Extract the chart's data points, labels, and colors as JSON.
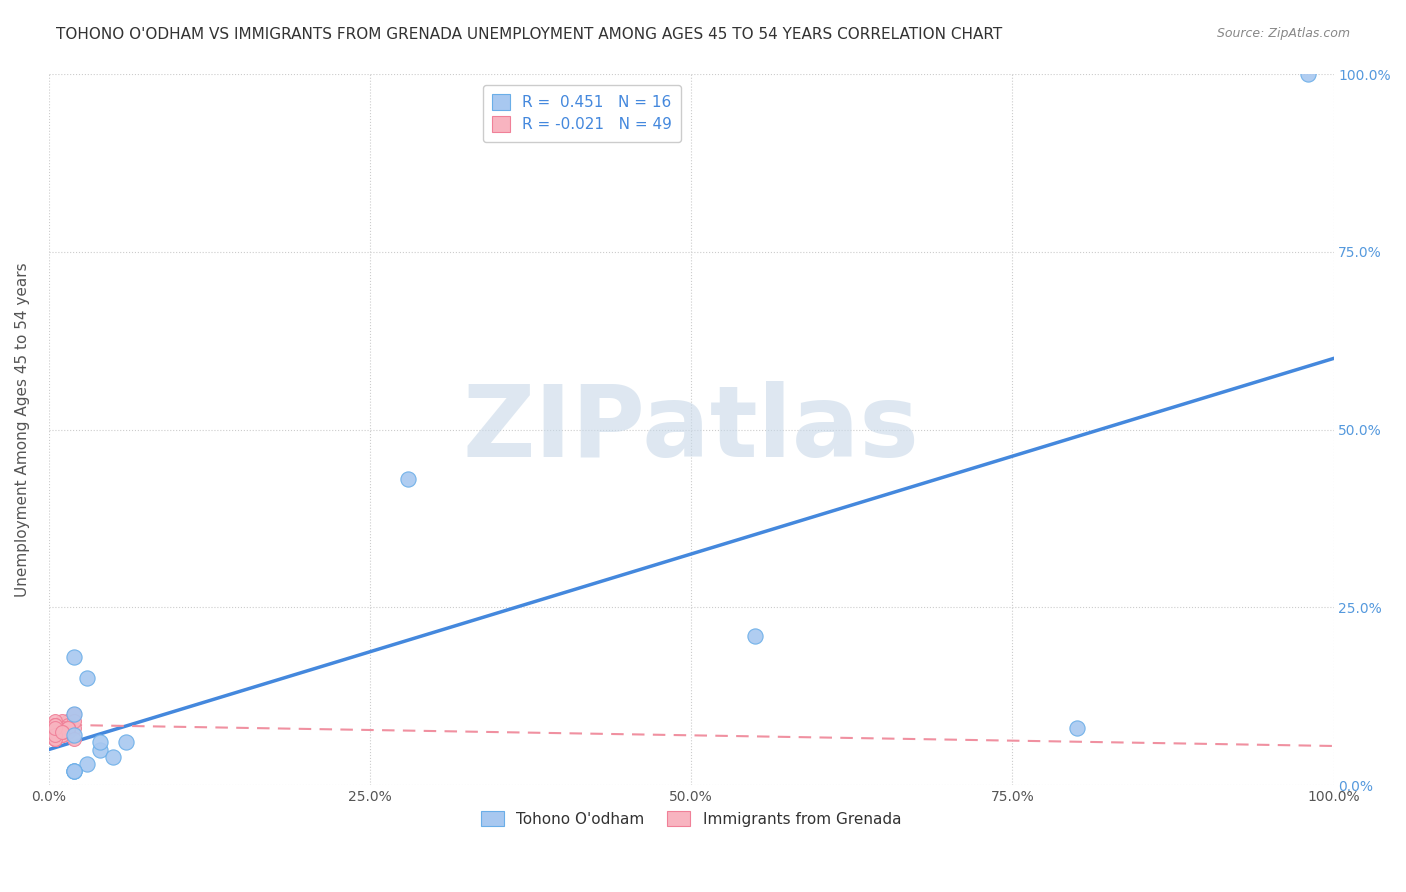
{
  "title": "TOHONO O'ODHAM VS IMMIGRANTS FROM GRENADA UNEMPLOYMENT AMONG AGES 45 TO 54 YEARS CORRELATION CHART",
  "source": "Source: ZipAtlas.com",
  "ylabel": "Unemployment Among Ages 45 to 54 years",
  "xlim": [
    0,
    1.0
  ],
  "ylim": [
    0,
    1.0
  ],
  "xticks": [
    0.0,
    0.25,
    0.5,
    0.75,
    1.0
  ],
  "yticks": [
    0.0,
    0.25,
    0.5,
    0.75,
    1.0
  ],
  "xticklabels": [
    "0.0%",
    "25.0%",
    "50.0%",
    "75.0%",
    "100.0%"
  ],
  "yticklabels": [
    "0.0%",
    "25.0%",
    "50.0%",
    "75.0%",
    "100.0%"
  ],
  "blue_scatter": {
    "x": [
      0.02,
      0.03,
      0.04,
      0.02,
      0.05,
      0.03,
      0.06,
      0.02,
      0.28,
      0.02,
      0.55,
      0.04,
      0.8,
      0.98,
      0.02,
      0.02
    ],
    "y": [
      0.18,
      0.15,
      0.05,
      0.02,
      0.04,
      0.03,
      0.06,
      0.07,
      0.43,
      0.02,
      0.21,
      0.06,
      0.08,
      1.0,
      0.02,
      0.1
    ],
    "color": "#a8c8f0",
    "edgecolor": "#6aaee8",
    "size": 120,
    "R": 0.451,
    "N": 16
  },
  "pink_scatter": {
    "x": [
      0.005,
      0.01,
      0.015,
      0.005,
      0.02,
      0.01,
      0.005,
      0.015,
      0.02,
      0.005,
      0.01,
      0.005,
      0.015,
      0.005,
      0.01,
      0.02,
      0.005,
      0.01,
      0.005,
      0.015,
      0.005,
      0.01,
      0.015,
      0.005,
      0.02,
      0.01,
      0.005,
      0.015,
      0.005,
      0.01,
      0.005,
      0.02,
      0.005,
      0.01,
      0.015,
      0.005,
      0.01,
      0.005,
      0.015,
      0.005,
      0.01,
      0.005,
      0.015,
      0.005,
      0.01,
      0.005,
      0.02,
      0.005,
      0.01
    ],
    "y": [
      0.085,
      0.075,
      0.09,
      0.08,
      0.1,
      0.07,
      0.085,
      0.075,
      0.08,
      0.065,
      0.07,
      0.08,
      0.09,
      0.085,
      0.075,
      0.1,
      0.065,
      0.08,
      0.085,
      0.075,
      0.07,
      0.09,
      0.08,
      0.085,
      0.1,
      0.075,
      0.07,
      0.085,
      0.075,
      0.08,
      0.065,
      0.09,
      0.085,
      0.075,
      0.08,
      0.065,
      0.07,
      0.09,
      0.08,
      0.085,
      0.075,
      0.065,
      0.08,
      0.085,
      0.075,
      0.07,
      0.065,
      0.08,
      0.075
    ],
    "color": "#f8b4c0",
    "edgecolor": "#f08098",
    "size": 100,
    "R": -0.021,
    "N": 49
  },
  "blue_line": {
    "x0": 0.0,
    "y0": 0.05,
    "x1": 1.0,
    "y1": 0.6,
    "color": "#4488dd",
    "linewidth": 2.5
  },
  "pink_line": {
    "x0": 0.0,
    "y0": 0.085,
    "x1": 1.0,
    "y1": 0.055,
    "color": "#f090a0",
    "linewidth": 1.5
  },
  "grid_color": "#cccccc",
  "background_color": "#ffffff",
  "watermark": "ZIPatlas",
  "watermark_color": "#c8d8e8",
  "watermark_fontsize": 72,
  "title_fontsize": 11,
  "ylabel_fontsize": 11,
  "tick_fontsize": 10,
  "legend_fontsize": 11,
  "right_ytick_color": "#5599dd",
  "right_ytick_fontsize": 10
}
